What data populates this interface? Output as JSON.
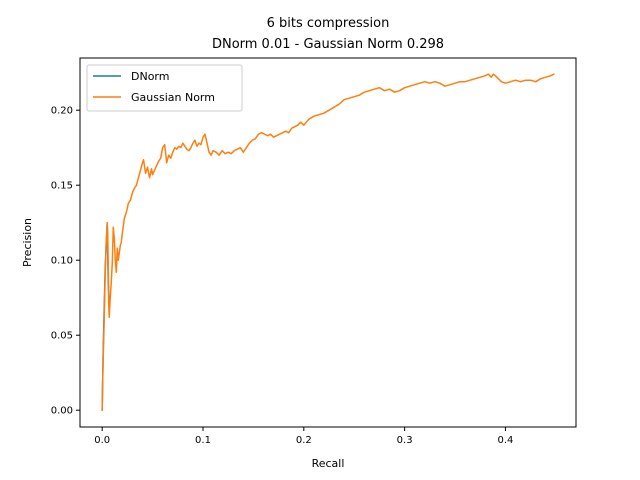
{
  "chart_data": {
    "type": "line",
    "title": "6 bits compression",
    "subtitle": "DNorm 0.01 - Gaussian Norm 0.298",
    "xlabel": "Recall",
    "ylabel": "Precision",
    "xlim": [
      -0.022,
      0.47
    ],
    "ylim": [
      -0.0112,
      0.2348
    ],
    "xticks": [
      0.0,
      0.1,
      0.2,
      0.3,
      0.4
    ],
    "xtick_labels": [
      "0.0",
      "0.1",
      "0.2",
      "0.3",
      "0.4"
    ],
    "yticks": [
      0.0,
      0.05,
      0.1,
      0.15,
      0.2
    ],
    "ytick_labels": [
      "0.00",
      "0.05",
      "0.10",
      "0.15",
      "0.20"
    ],
    "grid": false,
    "legend": "upper-left",
    "series": [
      {
        "name": "DNorm",
        "color": "#1f77b4",
        "x": [
          0.0,
          0.001,
          0.003,
          0.005,
          0.0055,
          0.006,
          0.007
        ],
        "y": [
          0.0,
          0.04,
          0.095,
          0.125,
          0.105,
          0.085,
          0.07
        ]
      },
      {
        "name": "Gaussian Norm",
        "color": "#ff7f0e",
        "x": [
          0.0,
          0.0005,
          0.001,
          0.002,
          0.003,
          0.004,
          0.005,
          0.0055,
          0.006,
          0.0065,
          0.007,
          0.008,
          0.009,
          0.01,
          0.011,
          0.012,
          0.013,
          0.014,
          0.015,
          0.016,
          0.017,
          0.018,
          0.019,
          0.02,
          0.022,
          0.024,
          0.026,
          0.028,
          0.03,
          0.032,
          0.034,
          0.036,
          0.038,
          0.04,
          0.041,
          0.043,
          0.045,
          0.047,
          0.049,
          0.05,
          0.052,
          0.054,
          0.056,
          0.058,
          0.06,
          0.062,
          0.064,
          0.066,
          0.068,
          0.07,
          0.072,
          0.074,
          0.076,
          0.078,
          0.08,
          0.082,
          0.084,
          0.086,
          0.088,
          0.09,
          0.092,
          0.094,
          0.096,
          0.098,
          0.1,
          0.102,
          0.104,
          0.106,
          0.108,
          0.11,
          0.113,
          0.116,
          0.119,
          0.122,
          0.125,
          0.128,
          0.131,
          0.134,
          0.137,
          0.14,
          0.143,
          0.146,
          0.149,
          0.152,
          0.155,
          0.158,
          0.161,
          0.164,
          0.167,
          0.17,
          0.173,
          0.176,
          0.179,
          0.182,
          0.185,
          0.188,
          0.191,
          0.194,
          0.197,
          0.2,
          0.205,
          0.21,
          0.215,
          0.22,
          0.225,
          0.23,
          0.235,
          0.24,
          0.245,
          0.25,
          0.255,
          0.26,
          0.265,
          0.27,
          0.275,
          0.28,
          0.285,
          0.29,
          0.295,
          0.3,
          0.305,
          0.31,
          0.315,
          0.32,
          0.325,
          0.33,
          0.335,
          0.34,
          0.345,
          0.35,
          0.355,
          0.36,
          0.365,
          0.37,
          0.375,
          0.38,
          0.383,
          0.386,
          0.388,
          0.39,
          0.393,
          0.396,
          0.4,
          0.405,
          0.41,
          0.415,
          0.42,
          0.425,
          0.43,
          0.435,
          0.44,
          0.445,
          0.448
        ],
        "y": [
          0.0,
          0.02,
          0.035,
          0.06,
          0.09,
          0.112,
          0.125,
          0.118,
          0.095,
          0.07,
          0.062,
          0.075,
          0.085,
          0.098,
          0.122,
          0.115,
          0.1,
          0.092,
          0.108,
          0.1,
          0.105,
          0.11,
          0.112,
          0.118,
          0.128,
          0.132,
          0.138,
          0.14,
          0.145,
          0.148,
          0.15,
          0.155,
          0.16,
          0.165,
          0.167,
          0.158,
          0.162,
          0.155,
          0.161,
          0.157,
          0.16,
          0.163,
          0.166,
          0.168,
          0.175,
          0.177,
          0.165,
          0.17,
          0.168,
          0.172,
          0.175,
          0.174,
          0.176,
          0.175,
          0.178,
          0.176,
          0.174,
          0.173,
          0.175,
          0.178,
          0.18,
          0.176,
          0.178,
          0.177,
          0.182,
          0.184,
          0.178,
          0.172,
          0.17,
          0.173,
          0.172,
          0.17,
          0.173,
          0.171,
          0.172,
          0.171,
          0.173,
          0.174,
          0.175,
          0.172,
          0.175,
          0.178,
          0.18,
          0.181,
          0.184,
          0.185,
          0.184,
          0.183,
          0.184,
          0.182,
          0.183,
          0.184,
          0.185,
          0.186,
          0.185,
          0.188,
          0.189,
          0.19,
          0.192,
          0.19,
          0.194,
          0.196,
          0.197,
          0.198,
          0.2,
          0.202,
          0.204,
          0.207,
          0.208,
          0.209,
          0.21,
          0.212,
          0.213,
          0.214,
          0.215,
          0.213,
          0.214,
          0.212,
          0.213,
          0.215,
          0.216,
          0.217,
          0.218,
          0.219,
          0.218,
          0.219,
          0.218,
          0.216,
          0.217,
          0.218,
          0.219,
          0.219,
          0.22,
          0.221,
          0.222,
          0.223,
          0.224,
          0.222,
          0.224,
          0.223,
          0.221,
          0.219,
          0.218,
          0.219,
          0.22,
          0.219,
          0.22,
          0.22,
          0.219,
          0.221,
          0.222,
          0.223,
          0.224
        ]
      }
    ]
  }
}
